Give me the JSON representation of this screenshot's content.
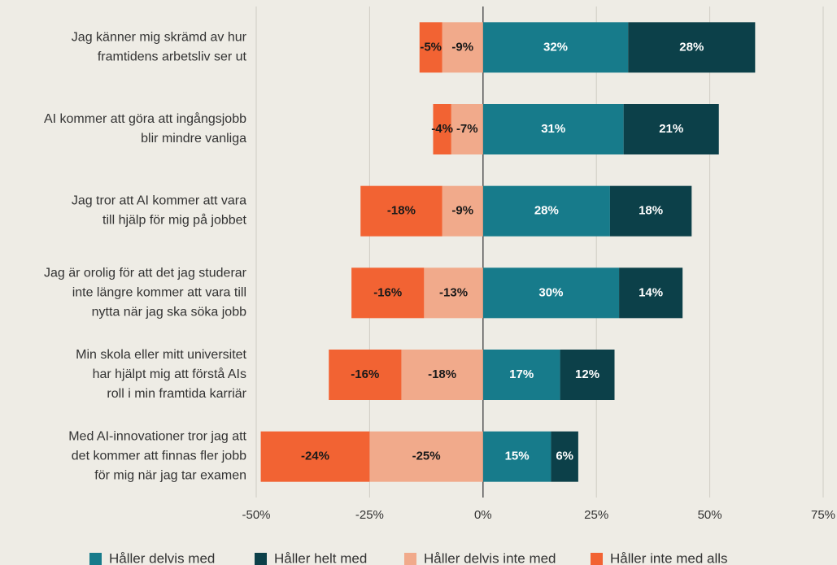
{
  "chart_data": {
    "type": "diverging_stacked_bar",
    "categories": [
      "Jag känner mig skrämd av hur\nframtidens arbetsliv ser ut",
      "AI kommer att göra att ingångsjobb\nblir mindre vanliga",
      "Jag tror att AI kommer att vara\ntill hjälp för mig på jobbet",
      "Jag är orolig för att det jag studerar\ninte längre kommer att vara till\nnytta när jag ska söka jobb",
      "Min skola eller mitt universitet\nhar hjälpt mig att förstå AIs\nroll i min framtida karriär",
      "Med AI-innovationer tror jag att\ndet kommer att finnas fler jobb\nför mig när jag tar examen"
    ],
    "series": [
      {
        "name": "Håller delvis med",
        "color": "#177b8b",
        "label_color": "#ffffff",
        "values": [
          32,
          31,
          28,
          30,
          17,
          15
        ],
        "value_labels": [
          "32%",
          "31%",
          "28%",
          "30%",
          "17%",
          "15%"
        ]
      },
      {
        "name": "Håller helt med",
        "color": "#0c4049",
        "label_color": "#ffffff",
        "values": [
          28,
          21,
          18,
          14,
          12,
          6
        ],
        "value_labels": [
          "28%",
          "21%",
          "18%",
          "14%",
          "12%",
          "6%"
        ]
      },
      {
        "name": "Håller delvis inte med",
        "color": "#f1aa8b",
        "label_color": "#1a1a1a",
        "values": [
          -9,
          -7,
          -9,
          -13,
          -18,
          -25
        ],
        "value_labels": [
          "-9%",
          "-7%",
          "-9%",
          "-13%",
          "-18%",
          "-25%"
        ]
      },
      {
        "name": "Håller inte med alls",
        "color": "#f26333",
        "label_color": "#1a1a1a",
        "values": [
          -5,
          -4,
          -18,
          -16,
          -16,
          -24
        ],
        "value_labels": [
          "-5%",
          "-4%",
          "-18%",
          "-16%",
          "-16%",
          "-24%"
        ]
      }
    ],
    "xlim": [
      -50,
      75
    ],
    "xticks": [
      {
        "value": -50,
        "label": "-50%"
      },
      {
        "value": -25,
        "label": "-25%"
      },
      {
        "value": 0,
        "label": "0%"
      },
      {
        "value": 25,
        "label": "25%"
      },
      {
        "value": 50,
        "label": "50%"
      },
      {
        "value": 75,
        "label": "75%"
      }
    ],
    "grid": true,
    "legend": "bottom"
  }
}
